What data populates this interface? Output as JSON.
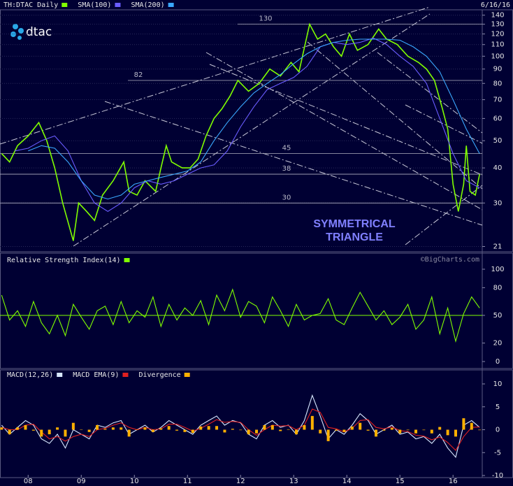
{
  "logo": "dtac",
  "watermark": "©BigCharts.com",
  "chart_data": [
    {
      "type": "line",
      "log_scale": true,
      "date": "6/16/16",
      "xlim": [
        2007.47,
        2016.55
      ],
      "ylim": [
        20.7,
        148
      ],
      "yticks": [
        21,
        30,
        40,
        50,
        60,
        70,
        80,
        90,
        100,
        110,
        120,
        130,
        140
      ],
      "grid": true,
      "levels": [
        130,
        82,
        45,
        38,
        30
      ],
      "annotations": [
        "SYMMETRICAL",
        "TRIANGLE"
      ],
      "series": [
        {
          "name": "TH:DTAC Daily",
          "color": "#80ff00",
          "x": [
            2007.5,
            2007.65,
            2007.8,
            2008.0,
            2008.2,
            2008.35,
            2008.5,
            2008.65,
            2008.85,
            2008.95,
            2009.1,
            2009.25,
            2009.4,
            2009.6,
            2009.8,
            2009.9,
            2010.05,
            2010.2,
            2010.4,
            2010.5,
            2010.6,
            2010.7,
            2010.9,
            2011.05,
            2011.2,
            2011.35,
            2011.5,
            2011.65,
            2011.8,
            2011.95,
            2012.15,
            2012.35,
            2012.55,
            2012.75,
            2012.95,
            2013.1,
            2013.3,
            2013.45,
            2013.6,
            2013.75,
            2013.9,
            2014.05,
            2014.2,
            2014.4,
            2014.6,
            2014.75,
            2014.95,
            2015.15,
            2015.35,
            2015.5,
            2015.65,
            2015.8,
            2015.9,
            2016.0,
            2016.1,
            2016.2,
            2016.25,
            2016.32,
            2016.42,
            2016.5
          ],
          "values": [
            45,
            42,
            48,
            52,
            58,
            50,
            40,
            30,
            22,
            30,
            28,
            26,
            32,
            36,
            42,
            33,
            32,
            36,
            33,
            40,
            48,
            42,
            40,
            40,
            43,
            52,
            60,
            65,
            72,
            82,
            75,
            80,
            90,
            85,
            95,
            88,
            130,
            115,
            120,
            108,
            100,
            120,
            105,
            110,
            125,
            115,
            110,
            100,
            95,
            90,
            82,
            65,
            55,
            35,
            28,
            35,
            48,
            33,
            32,
            38
          ]
        },
        {
          "name": "SMA(100)",
          "color": "#6a5cff",
          "x": [
            2007.75,
            2008.0,
            2008.25,
            2008.5,
            2008.75,
            2009.0,
            2009.25,
            2009.5,
            2009.75,
            2010.0,
            2010.25,
            2010.5,
            2010.75,
            2011.0,
            2011.25,
            2011.5,
            2011.75,
            2012.0,
            2012.25,
            2012.5,
            2012.75,
            2013.0,
            2013.25,
            2013.5,
            2013.75,
            2014.0,
            2014.25,
            2014.5,
            2014.75,
            2015.0,
            2015.25,
            2015.5,
            2015.75,
            2016.0,
            2016.25,
            2016.5
          ],
          "values": [
            46,
            47,
            50,
            52,
            46,
            36,
            30,
            28,
            30,
            34,
            36,
            35,
            36,
            38,
            40,
            41,
            46,
            56,
            66,
            76,
            80,
            84,
            92,
            108,
            112,
            110,
            112,
            116,
            110,
            100,
            92,
            80,
            60,
            45,
            36,
            34
          ]
        },
        {
          "name": "SMA(200)",
          "color": "#3aa8ff",
          "x": [
            2008.0,
            2008.25,
            2008.5,
            2008.75,
            2009.0,
            2009.25,
            2009.5,
            2009.75,
            2010.0,
            2010.25,
            2010.5,
            2010.75,
            2011.0,
            2011.25,
            2011.5,
            2011.75,
            2012.0,
            2012.25,
            2012.5,
            2012.75,
            2013.0,
            2013.25,
            2013.5,
            2013.75,
            2014.0,
            2014.25,
            2014.5,
            2014.75,
            2015.0,
            2015.25,
            2015.5,
            2015.75,
            2016.0,
            2016.25,
            2016.5
          ],
          "values": [
            46,
            48,
            47,
            42,
            36,
            32,
            31,
            32,
            35,
            36,
            37,
            38,
            39,
            42,
            50,
            58,
            66,
            74,
            80,
            86,
            94,
            102,
            108,
            112,
            114,
            115,
            115,
            115,
            114,
            108,
            100,
            88,
            70,
            55,
            45
          ]
        }
      ]
    },
    {
      "type": "line",
      "title": "Relative Strength Index(14)",
      "xlim": [
        2007.47,
        2016.55
      ],
      "ylim": [
        0,
        100
      ],
      "yticks": [
        0,
        20,
        50,
        80,
        100
      ],
      "centerline": 50,
      "x": [
        2007.5,
        2007.65,
        2007.8,
        2007.95,
        2008.1,
        2008.25,
        2008.4,
        2008.55,
        2008.7,
        2008.85,
        2009.0,
        2009.15,
        2009.3,
        2009.45,
        2009.6,
        2009.75,
        2009.9,
        2010.05,
        2010.2,
        2010.35,
        2010.5,
        2010.65,
        2010.8,
        2010.95,
        2011.1,
        2011.25,
        2011.4,
        2011.55,
        2011.7,
        2011.85,
        2012.0,
        2012.15,
        2012.3,
        2012.45,
        2012.6,
        2012.75,
        2012.9,
        2013.05,
        2013.2,
        2013.35,
        2013.5,
        2013.65,
        2013.8,
        2013.95,
        2014.1,
        2014.25,
        2014.4,
        2014.55,
        2014.7,
        2014.85,
        2015.0,
        2015.15,
        2015.3,
        2015.45,
        2015.6,
        2015.75,
        2015.9,
        2016.05,
        2016.2,
        2016.35,
        2016.5
      ],
      "series": [
        {
          "name": "Relative Strength Index(14)",
          "color": "#80ff00",
          "values": [
            72,
            45,
            55,
            38,
            65,
            42,
            30,
            50,
            28,
            62,
            48,
            35,
            55,
            60,
            40,
            65,
            42,
            55,
            48,
            70,
            38,
            62,
            45,
            58,
            50,
            66,
            40,
            72,
            55,
            78,
            48,
            65,
            60,
            42,
            70,
            55,
            38,
            62,
            45,
            50,
            52,
            68,
            45,
            40,
            58,
            75,
            60,
            45,
            55,
            40,
            48,
            62,
            35,
            45,
            70,
            30,
            58,
            22,
            52,
            70,
            58
          ]
        }
      ]
    },
    {
      "type": "line",
      "xlim": [
        2007.47,
        2016.55
      ],
      "ylim": [
        -10,
        10
      ],
      "yticks": [
        -10,
        -5,
        0,
        5,
        10
      ],
      "xticks": [
        {
          "value": 2008,
          "label": "08"
        },
        {
          "value": 2009,
          "label": "09"
        },
        {
          "value": 2010,
          "label": "10"
        },
        {
          "value": 2011,
          "label": "11"
        },
        {
          "value": 2012,
          "label": "12"
        },
        {
          "value": 2013,
          "label": "13"
        },
        {
          "value": 2014,
          "label": "14"
        },
        {
          "value": 2015,
          "label": "15"
        },
        {
          "value": 2016,
          "label": "16"
        }
      ],
      "x": [
        2007.5,
        2007.65,
        2007.8,
        2007.95,
        2008.1,
        2008.25,
        2008.4,
        2008.55,
        2008.7,
        2008.85,
        2009.0,
        2009.15,
        2009.3,
        2009.45,
        2009.6,
        2009.75,
        2009.9,
        2010.05,
        2010.2,
        2010.35,
        2010.5,
        2010.65,
        2010.8,
        2010.95,
        2011.1,
        2011.25,
        2011.4,
        2011.55,
        2011.7,
        2011.85,
        2012.0,
        2012.15,
        2012.3,
        2012.45,
        2012.6,
        2012.75,
        2012.9,
        2013.05,
        2013.2,
        2013.35,
        2013.5,
        2013.65,
        2013.8,
        2013.95,
        2014.1,
        2014.25,
        2014.4,
        2014.55,
        2014.7,
        2014.85,
        2015.0,
        2015.15,
        2015.3,
        2015.45,
        2015.6,
        2015.75,
        2015.9,
        2016.05,
        2016.2,
        2016.35,
        2016.5
      ],
      "series": [
        {
          "name": "MACD(12,26)",
          "color": "#d8e8ff",
          "values": [
            1,
            -1,
            0.5,
            2,
            1,
            -2,
            -3,
            -1,
            -4,
            0,
            -1,
            -2,
            1,
            0.5,
            1.5,
            2,
            -1,
            0,
            1,
            -0.5,
            0.5,
            2,
            1,
            0,
            -1,
            1,
            2,
            3,
            1,
            2,
            1.5,
            -1,
            -2,
            1,
            2,
            0.5,
            1,
            -1,
            2,
            7.5,
            3,
            -2,
            0,
            -1,
            1,
            3.5,
            2,
            -1,
            0,
            1,
            -1,
            -0.5,
            -2,
            -1.5,
            -3,
            -1,
            -4,
            -6,
            1,
            2,
            0.5
          ]
        },
        {
          "name": "MACD EMA(9)",
          "color": "#e02020",
          "values": [
            0.5,
            0,
            0,
            1,
            1.2,
            -0.5,
            -2,
            -1.5,
            -2.5,
            -1.5,
            -1,
            -1.5,
            0,
            0.3,
            1,
            1.5,
            0.5,
            0,
            0.5,
            0,
            0.2,
            1.2,
            1.2,
            0.5,
            -0.3,
            0.3,
            1.2,
            2.2,
            1.6,
            1.8,
            1.6,
            0,
            -1.2,
            0,
            1,
            0.8,
            0.9,
            0,
            1,
            4.5,
            3.8,
            0.5,
            0.2,
            -0.5,
            0.3,
            2,
            2.2,
            0.5,
            0.2,
            0.6,
            -0.2,
            -0.4,
            -1.2,
            -1.4,
            -2.2,
            -1.6,
            -2.8,
            -4.5,
            -1.5,
            0.5,
            0.6
          ]
        },
        {
          "name": "Divergence",
          "color": "#ffb000",
          "type": "bar",
          "values": [
            0.5,
            -1,
            0.5,
            1,
            -0.2,
            -1.5,
            -1,
            0.5,
            -1.5,
            1.5,
            0,
            -0.5,
            1,
            0.2,
            0.5,
            0.5,
            -1.5,
            0,
            0.5,
            -0.5,
            0.3,
            0.8,
            -0.2,
            -0.5,
            -0.7,
            0.7,
            0.8,
            0.8,
            -0.6,
            0.2,
            -0.1,
            -1,
            -0.8,
            1,
            1,
            -0.3,
            0.1,
            -1,
            1,
            3,
            -0.8,
            -2.5,
            -0.2,
            -0.5,
            0.7,
            1.5,
            -0.2,
            -1.5,
            -0.2,
            0.4,
            -0.8,
            -0.1,
            -0.8,
            -0.1,
            -0.8,
            0.6,
            -1.2,
            -1.5,
            2.5,
            1.5,
            -0.1
          ]
        }
      ]
    }
  ]
}
